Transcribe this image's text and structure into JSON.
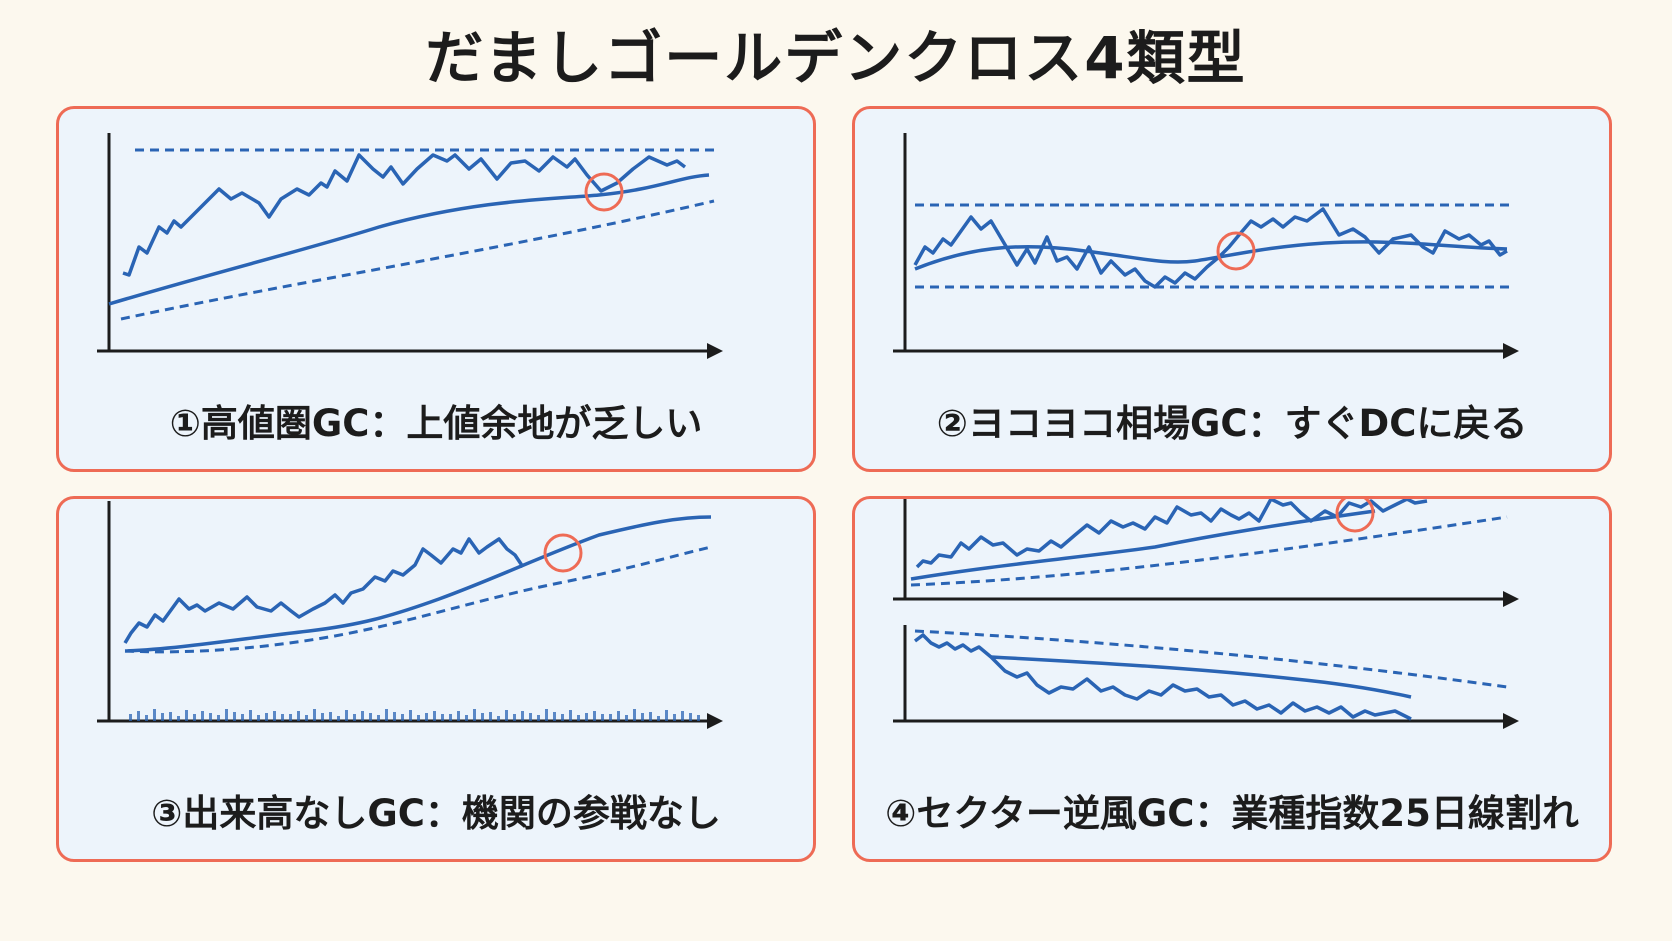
{
  "title": "だましゴールデンクロス4類型",
  "colors": {
    "line": "#2a64b4",
    "axis": "#1c1c1c",
    "marker": "#ee6b55",
    "panel_bg": "#edf4fb",
    "page_bg": "#fcf8ee"
  },
  "panels": [
    {
      "caption": "①高値圏GC：上値余地が乏しい"
    },
    {
      "caption": "②ヨコヨコ相場GC：すぐDCに戻る"
    },
    {
      "caption": "③出来高なしGC：機関の参戦なし"
    },
    {
      "caption": "④セクター逆風GC：業種指数25日線割れ"
    }
  ]
}
